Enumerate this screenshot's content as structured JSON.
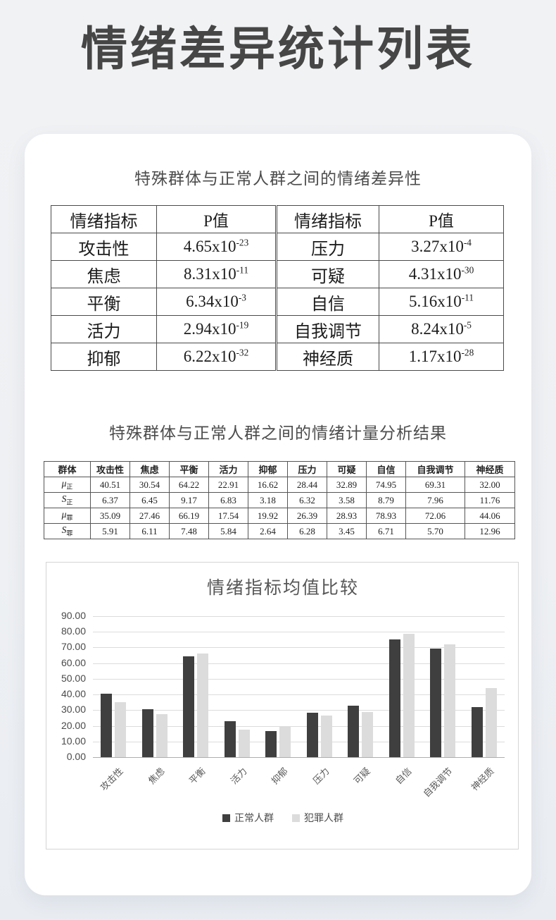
{
  "page": {
    "title": "情绪差异统计列表"
  },
  "colors": {
    "page_background": "#eef0f3",
    "card_background": "#ffffff",
    "title_text": "#464646",
    "table_border": "#4a4a4a",
    "series_normal": "#3f3f3f",
    "series_crime": "#dcdcdc",
    "gridline": "#dcdcdc",
    "axis_line": "#aeaeae"
  },
  "section1": {
    "heading": "特殊群体与正常人群之间的情绪差异性",
    "table": {
      "col_headers": [
        "情绪指标",
        "P值",
        "情绪指标",
        "P值"
      ],
      "rows": [
        {
          "left_indicator": "攻击性",
          "left_p_base": "4.65x10",
          "left_p_exp": "-23",
          "right_indicator": "压力",
          "right_p_base": "3.27x10",
          "right_p_exp": "-4"
        },
        {
          "left_indicator": "焦虑",
          "left_p_base": "8.31x10",
          "left_p_exp": "-11",
          "right_indicator": "可疑",
          "right_p_base": "4.31x10",
          "right_p_exp": "-30"
        },
        {
          "left_indicator": "平衡",
          "left_p_base": "6.34x10",
          "left_p_exp": "-3",
          "right_indicator": "自信",
          "right_p_base": "5.16x10",
          "right_p_exp": "-11"
        },
        {
          "left_indicator": "活力",
          "left_p_base": "2.94x10",
          "left_p_exp": "-19",
          "right_indicator": "自我调节",
          "right_p_base": "8.24x10",
          "right_p_exp": "-5"
        },
        {
          "left_indicator": "抑郁",
          "left_p_base": "6.22x10",
          "left_p_exp": "-32",
          "right_indicator": "神经质",
          "right_p_base": "1.17x10",
          "right_p_exp": "-28"
        }
      ]
    }
  },
  "section2": {
    "heading": "特殊群体与正常人群之间的情绪计量分析结果",
    "table": {
      "col_headers": [
        "群体",
        "攻击性",
        "焦虑",
        "平衡",
        "活力",
        "抑郁",
        "压力",
        "可疑",
        "自信",
        "自我调节",
        "神经质"
      ],
      "rows": [
        {
          "label_symbol": "μ",
          "label_sub": "正",
          "values": [
            "40.51",
            "30.54",
            "64.22",
            "22.91",
            "16.62",
            "28.44",
            "32.89",
            "74.95",
            "69.31",
            "32.00"
          ]
        },
        {
          "label_symbol": "S",
          "label_sub": "正",
          "values": [
            "6.37",
            "6.45",
            "9.17",
            "6.83",
            "3.18",
            "6.32",
            "3.58",
            "8.79",
            "7.96",
            "11.76"
          ]
        },
        {
          "label_symbol": "μ",
          "label_sub": "罪",
          "values": [
            "35.09",
            "27.46",
            "66.19",
            "17.54",
            "19.92",
            "26.39",
            "28.93",
            "78.93",
            "72.06",
            "44.06"
          ]
        },
        {
          "label_symbol": "S",
          "label_sub": "罪",
          "values": [
            "5.91",
            "6.11",
            "7.48",
            "5.84",
            "2.64",
            "6.28",
            "3.45",
            "6.71",
            "5.70",
            "12.96"
          ]
        }
      ]
    }
  },
  "chart_data": {
    "type": "bar",
    "title": "情绪指标均值比较",
    "categories": [
      "攻击性",
      "焦虑",
      "平衡",
      "活力",
      "抑郁",
      "压力",
      "可疑",
      "自信",
      "自我调节",
      "神经质"
    ],
    "series": [
      {
        "name": "正常人群",
        "color": "#3f3f3f",
        "values": [
          40.51,
          30.54,
          64.22,
          22.91,
          16.62,
          28.44,
          32.89,
          74.95,
          69.31,
          32.0
        ]
      },
      {
        "name": "犯罪人群",
        "color": "#dcdcdc",
        "values": [
          35.09,
          27.46,
          66.19,
          17.54,
          19.92,
          26.39,
          28.93,
          78.93,
          72.06,
          44.06
        ]
      }
    ],
    "ylim": [
      0,
      90
    ],
    "ytick_step": 10,
    "ytick_decimals": 2,
    "grid": true,
    "legend_position": "bottom"
  }
}
